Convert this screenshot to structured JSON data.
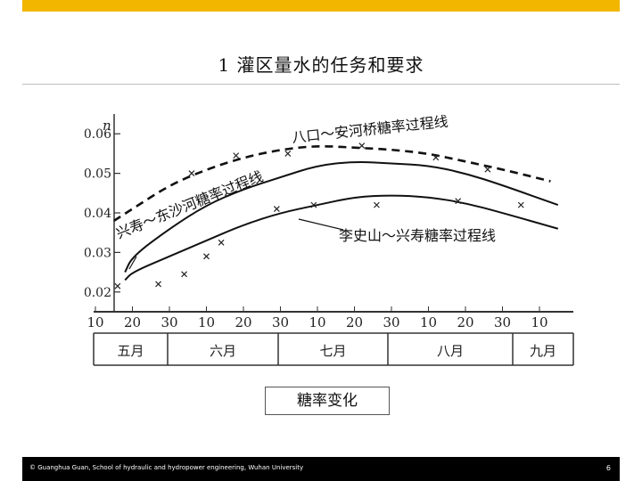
{
  "slide": {
    "title": "1  灌区量水的任务和要求",
    "caption": "糖率变化",
    "footer_text": "© Guanghua Guan, School of hydraulic and hydropower engineering, Wuhan University",
    "page_number": "6",
    "accent_color": "#f2b600"
  },
  "chart_data": {
    "type": "line",
    "ylabel": "n",
    "yticks": [
      "0.06",
      "0.05",
      "0.04",
      "0.03",
      "0.02"
    ],
    "ylim": [
      0.015,
      0.065
    ],
    "x_ticks_day": [
      "10",
      "20",
      "30",
      "10",
      "20",
      "30",
      "10",
      "20",
      "30",
      "10",
      "20",
      "30",
      "10"
    ],
    "months": [
      "五月",
      "六月",
      "七月",
      "八月",
      "九月"
    ],
    "series": [
      {
        "name": "八口～安河桥糖率过程线",
        "style": "dashed",
        "x": [
          0.5,
          1,
          2,
          3,
          4,
          5,
          6,
          7,
          8,
          9,
          10,
          11,
          12.3
        ],
        "y": [
          0.038,
          0.041,
          0.047,
          0.051,
          0.054,
          0.056,
          0.057,
          0.0565,
          0.056,
          0.055,
          0.053,
          0.051,
          0.048
        ]
      },
      {
        "name": "兴寿～东沙河糖率过程线",
        "style": "solid",
        "x": [
          0.8,
          1,
          2,
          3,
          4,
          5,
          6,
          7,
          8,
          9,
          10,
          11,
          12.5
        ],
        "y": [
          0.025,
          0.029,
          0.036,
          0.042,
          0.046,
          0.049,
          0.052,
          0.053,
          0.0525,
          0.052,
          0.05,
          0.047,
          0.042
        ]
      },
      {
        "name": "李史山～兴寿糖率过程线",
        "style": "solid",
        "x": [
          0.8,
          1,
          2,
          3,
          4,
          5,
          6,
          7,
          8,
          9,
          10,
          11,
          12.5
        ],
        "y": [
          0.023,
          0.025,
          0.029,
          0.033,
          0.037,
          0.04,
          0.042,
          0.044,
          0.0445,
          0.044,
          0.0425,
          0.04,
          0.036
        ]
      }
    ],
    "scatter_points": [
      {
        "x": 0.6,
        "y": 0.0215
      },
      {
        "x": 1.7,
        "y": 0.022
      },
      {
        "x": 2.4,
        "y": 0.0245
      },
      {
        "x": 3.0,
        "y": 0.029
      },
      {
        "x": 3.4,
        "y": 0.0325
      },
      {
        "x": 4.9,
        "y": 0.041
      },
      {
        "x": 5.9,
        "y": 0.042
      },
      {
        "x": 7.6,
        "y": 0.042
      },
      {
        "x": 9.8,
        "y": 0.043
      },
      {
        "x": 11.5,
        "y": 0.042
      },
      {
        "x": 2.6,
        "y": 0.05
      },
      {
        "x": 3.8,
        "y": 0.0545
      },
      {
        "x": 5.2,
        "y": 0.055
      },
      {
        "x": 7.2,
        "y": 0.057
      },
      {
        "x": 9.2,
        "y": 0.054
      },
      {
        "x": 10.6,
        "y": 0.051
      }
    ]
  }
}
